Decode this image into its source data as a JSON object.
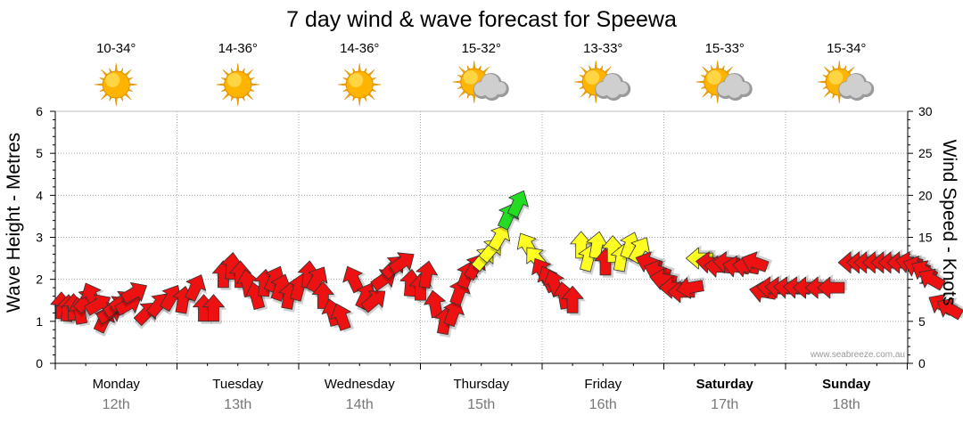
{
  "chart_data": {
    "type": "line",
    "title": "7 day wind & wave forecast for Speewa",
    "ylabel": "Wave Height - Metres",
    "ylim": [
      0,
      6
    ],
    "y2label": "Wind Speed - Knots",
    "y2lim": [
      0,
      30
    ],
    "grid": true,
    "watermark": "www.seabreeze.com.au",
    "days": [
      {
        "name": "Monday",
        "date": "12th",
        "temp": "10-34°",
        "weather": "sunny",
        "bold": false
      },
      {
        "name": "Tuesday",
        "date": "13th",
        "temp": "14-36°",
        "weather": "sunny",
        "bold": false
      },
      {
        "name": "Wednesday",
        "date": "14th",
        "temp": "14-36°",
        "weather": "sunny",
        "bold": false
      },
      {
        "name": "Thursday",
        "date": "15th",
        "temp": "15-32°",
        "weather": "partly-cloudy",
        "bold": false
      },
      {
        "name": "Friday",
        "date": "16th",
        "temp": "13-33°",
        "weather": "partly-cloudy",
        "bold": false
      },
      {
        "name": "Saturday",
        "date": "17th",
        "temp": "15-33°",
        "weather": "partly-cloudy",
        "bold": true
      },
      {
        "name": "Sunday",
        "date": "18th",
        "temp": "15-34°",
        "weather": "partly-cloudy",
        "bold": true
      }
    ],
    "series": [
      {
        "kind": "wind-arrows",
        "x_unit": "day",
        "points": [
          {
            "t": 0.05,
            "knots": 6.8,
            "dir": 0
          },
          {
            "t": 0.1,
            "knots": 6.5,
            "dir": 5
          },
          {
            "t": 0.15,
            "knots": 6.6,
            "dir": 0
          },
          {
            "t": 0.2,
            "knots": 6.2,
            "dir": -10
          },
          {
            "t": 0.25,
            "knots": 7.5,
            "dir": 40
          },
          {
            "t": 0.3,
            "knots": 8.0,
            "dir": -25
          },
          {
            "t": 0.35,
            "knots": 7.0,
            "dir": 60
          },
          {
            "t": 0.4,
            "knots": 5.2,
            "dir": 25
          },
          {
            "t": 0.45,
            "knots": 6.0,
            "dir": 60
          },
          {
            "t": 0.5,
            "knots": 6.8,
            "dir": 55
          },
          {
            "t": 0.55,
            "knots": 7.4,
            "dir": 55
          },
          {
            "t": 0.6,
            "knots": 7.0,
            "dir": 60
          },
          {
            "t": 0.65,
            "knots": 8.4,
            "dir": 60
          },
          {
            "t": 0.75,
            "knots": 6.0,
            "dir": 45
          },
          {
            "t": 0.85,
            "knots": 7.0,
            "dir": 40
          },
          {
            "t": 0.95,
            "knots": 7.8,
            "dir": 30
          },
          {
            "t": 1.05,
            "knots": 7.5,
            "dir": 10
          },
          {
            "t": 1.15,
            "knots": 9.0,
            "dir": 25
          },
          {
            "t": 1.22,
            "knots": 6.5,
            "dir": 0
          },
          {
            "t": 1.3,
            "knots": 6.5,
            "dir": 0
          },
          {
            "t": 1.38,
            "knots": 10.5,
            "dir": 0
          },
          {
            "t": 1.45,
            "knots": 11.5,
            "dir": 5
          },
          {
            "t": 1.52,
            "knots": 10.5,
            "dir": 0
          },
          {
            "t": 1.58,
            "knots": 9.5,
            "dir": -10
          },
          {
            "t": 1.65,
            "knots": 8.0,
            "dir": -15
          },
          {
            "t": 1.72,
            "knots": 9.5,
            "dir": 5
          },
          {
            "t": 1.8,
            "knots": 10.0,
            "dir": 25
          },
          {
            "t": 1.85,
            "knots": 9.0,
            "dir": 20
          },
          {
            "t": 1.92,
            "knots": 8.0,
            "dir": 10
          },
          {
            "t": 2.0,
            "knots": 9.0,
            "dir": 15
          },
          {
            "t": 2.08,
            "knots": 10.5,
            "dir": 5
          },
          {
            "t": 2.15,
            "knots": 10.0,
            "dir": 30
          },
          {
            "t": 2.2,
            "knots": 8.0,
            "dir": 0
          },
          {
            "t": 2.28,
            "knots": 6.0,
            "dir": -15
          },
          {
            "t": 2.35,
            "knots": 5.5,
            "dir": -20
          },
          {
            "t": 2.45,
            "knots": 10.0,
            "dir": -25
          },
          {
            "t": 2.55,
            "knots": 8.0,
            "dir": 25
          },
          {
            "t": 2.62,
            "knots": 7.5,
            "dir": 50
          },
          {
            "t": 2.7,
            "knots": 10.0,
            "dir": 55
          },
          {
            "t": 2.78,
            "knots": 11.5,
            "dir": 45
          },
          {
            "t": 2.85,
            "knots": 12.0,
            "dir": 55
          },
          {
            "t": 2.92,
            "knots": 9.5,
            "dir": 5
          },
          {
            "t": 3.0,
            "knots": 9.0,
            "dir": 0
          },
          {
            "t": 3.05,
            "knots": 10.5,
            "dir": 10
          },
          {
            "t": 3.12,
            "knots": 7.0,
            "dir": -10
          },
          {
            "t": 3.2,
            "knots": 5.0,
            "dir": 10
          },
          {
            "t": 3.27,
            "knots": 6.0,
            "dir": 20
          },
          {
            "t": 3.32,
            "knots": 8.5,
            "dir": 20
          },
          {
            "t": 3.38,
            "knots": 10.5,
            "dir": 20
          },
          {
            "t": 3.45,
            "knots": 11.5,
            "dir": 30
          },
          {
            "t": 3.52,
            "knots": 12.5,
            "dir": 40
          },
          {
            "t": 3.58,
            "knots": 13.5,
            "dir": 40
          },
          {
            "t": 3.65,
            "knots": 15.0,
            "dir": 30
          },
          {
            "t": 3.72,
            "knots": 17.5,
            "dir": 25
          },
          {
            "t": 3.8,
            "knots": 19.0,
            "dir": 25
          },
          {
            "t": 3.88,
            "knots": 14.0,
            "dir": -30
          },
          {
            "t": 3.95,
            "knots": 12.5,
            "dir": -40
          },
          {
            "t": 4.0,
            "knots": 11.0,
            "dir": -30
          },
          {
            "t": 4.05,
            "knots": 10.0,
            "dir": -25
          },
          {
            "t": 4.1,
            "knots": 9.5,
            "dir": -20
          },
          {
            "t": 4.18,
            "knots": 8.0,
            "dir": -10
          },
          {
            "t": 4.25,
            "knots": 7.5,
            "dir": 0
          },
          {
            "t": 4.32,
            "knots": 14.0,
            "dir": 0
          },
          {
            "t": 4.38,
            "knots": 12.5,
            "dir": 15
          },
          {
            "t": 4.45,
            "knots": 14.0,
            "dir": 10
          },
          {
            "t": 4.52,
            "knots": 12.0,
            "dir": 0
          },
          {
            "t": 4.58,
            "knots": 13.5,
            "dir": 0
          },
          {
            "t": 4.65,
            "knots": 12.5,
            "dir": 10
          },
          {
            "t": 4.72,
            "knots": 14.0,
            "dir": 20
          },
          {
            "t": 4.8,
            "knots": 13.5,
            "dir": 30
          },
          {
            "t": 4.88,
            "knots": 12.0,
            "dir": -70
          },
          {
            "t": 4.95,
            "knots": 11.0,
            "dir": -70
          },
          {
            "t": 5.0,
            "knots": 10.0,
            "dir": -80
          },
          {
            "t": 5.08,
            "knots": 9.0,
            "dir": -90
          },
          {
            "t": 5.15,
            "knots": 8.5,
            "dir": -90
          },
          {
            "t": 5.22,
            "knots": 9.0,
            "dir": -100
          },
          {
            "t": 5.3,
            "knots": 12.5,
            "dir": -90
          },
          {
            "t": 5.38,
            "knots": 12.0,
            "dir": -85
          },
          {
            "t": 5.45,
            "knots": 11.5,
            "dir": -85
          },
          {
            "t": 5.52,
            "knots": 12.0,
            "dir": -85
          },
          {
            "t": 5.6,
            "knots": 11.5,
            "dir": -80
          },
          {
            "t": 5.68,
            "knots": 11.5,
            "dir": -80
          },
          {
            "t": 5.75,
            "knots": 12.0,
            "dir": -70
          },
          {
            "t": 5.82,
            "knots": 8.5,
            "dir": -80
          },
          {
            "t": 5.88,
            "knots": 9.0,
            "dir": -85
          },
          {
            "t": 5.95,
            "knots": 9.0,
            "dir": -85
          },
          {
            "t": 6.02,
            "knots": 9.0,
            "dir": -85
          },
          {
            "t": 6.1,
            "knots": 9.0,
            "dir": -85
          },
          {
            "t": 6.18,
            "knots": 9.0,
            "dir": -90
          },
          {
            "t": 6.28,
            "knots": 9.0,
            "dir": -90
          },
          {
            "t": 6.38,
            "knots": 9.0,
            "dir": -90
          },
          {
            "t": 6.55,
            "knots": 12.0,
            "dir": -90
          },
          {
            "t": 6.62,
            "knots": 12.0,
            "dir": -90
          },
          {
            "t": 6.68,
            "knots": 12.0,
            "dir": -90
          },
          {
            "t": 6.75,
            "knots": 12.0,
            "dir": -90
          },
          {
            "t": 6.82,
            "knots": 12.0,
            "dir": -90
          },
          {
            "t": 6.88,
            "knots": 12.0,
            "dir": -90
          },
          {
            "t": 6.95,
            "knots": 12.0,
            "dir": -90
          },
          {
            "t": 7.02,
            "knots": 12.0,
            "dir": -80
          },
          {
            "t": 7.08,
            "knots": 11.5,
            "dir": -70
          },
          {
            "t": 7.14,
            "knots": 11.0,
            "dir": -60
          },
          {
            "t": 7.2,
            "knots": 10.0,
            "dir": -60
          },
          {
            "t": 7.28,
            "knots": 7.0,
            "dir": -60
          },
          {
            "t": 7.35,
            "knots": 6.5,
            "dir": -60
          }
        ]
      }
    ],
    "speed_colors": [
      {
        "max_knots": 12,
        "color": "#ee1111"
      },
      {
        "max_knots": 17,
        "color": "#ffff22"
      },
      {
        "max_knots": 100,
        "color": "#22dd22"
      }
    ]
  }
}
